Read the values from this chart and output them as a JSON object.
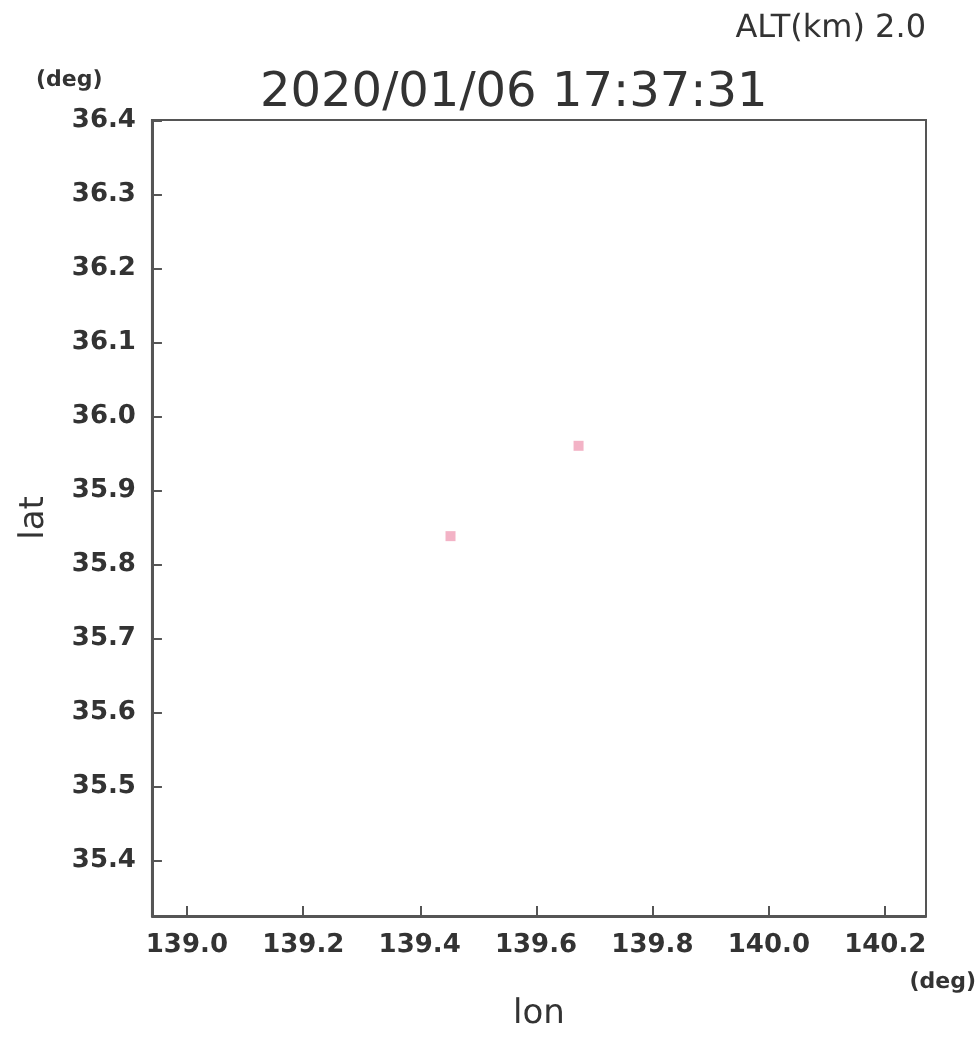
{
  "chart_data": {
    "type": "scatter",
    "title": "2020/01/06 17:37:31",
    "subtitle": "ALT(km) 2.0",
    "xlabel": "lon",
    "ylabel": "lat",
    "annotations": [
      "(deg)",
      "(deg)"
    ],
    "x": [
      139.673,
      139.453
    ],
    "values": [
      35.96,
      35.838
    ],
    "color": "#f0a0b8",
    "xlim": [
      138.94,
      140.27
    ],
    "xticks": [
      {
        "value": 139,
        "label": "139.0"
      },
      139.2,
      139.4,
      139.6,
      139.8,
      {
        "value": 140,
        "label": "140.0"
      },
      140.2
    ],
    "ylim": [
      35.325,
      36.4
    ],
    "yticks": [
      35.4,
      35.5,
      35.6,
      35.7,
      35.8,
      35.9,
      {
        "value": 36,
        "label": "36.0"
      },
      36.1,
      36.2,
      36.3,
      36.4
    ],
    "grid": false,
    "marker": "square"
  }
}
